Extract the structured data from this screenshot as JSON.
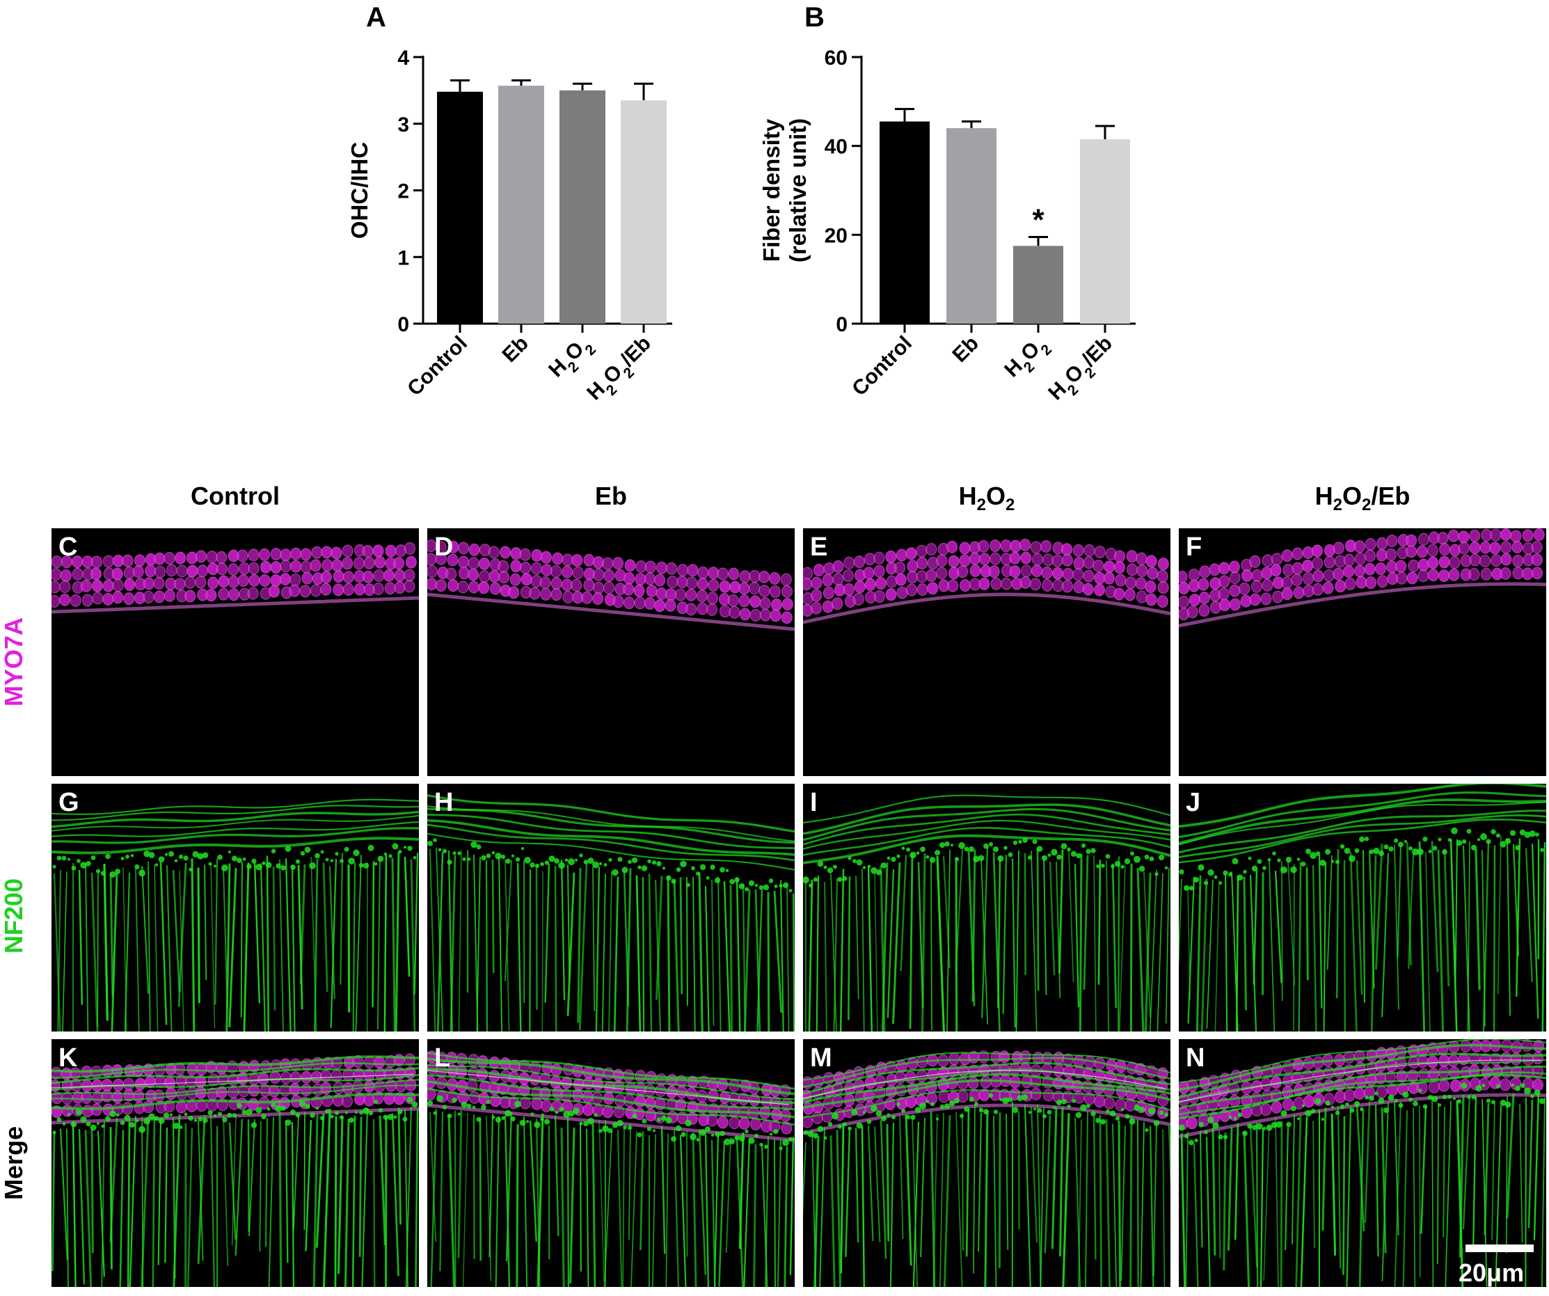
{
  "figure": {
    "column_headers": [
      {
        "main": "Control",
        "sub1": "",
        "mid": "",
        "sub2": "",
        "tail": ""
      },
      {
        "main": "Eb",
        "sub1": "",
        "mid": "",
        "sub2": "",
        "tail": ""
      },
      {
        "main": "H",
        "sub1": "2",
        "mid": "O",
        "sub2": "2",
        "tail": ""
      },
      {
        "main": "H",
        "sub1": "2",
        "mid": "O",
        "sub2": "2",
        "tail": "/Eb"
      }
    ],
    "row_labels": [
      "MYO7A",
      "NF200",
      "Merge"
    ],
    "panel_letters": [
      "C",
      "D",
      "E",
      "F",
      "G",
      "H",
      "I",
      "J",
      "K",
      "L",
      "M",
      "N"
    ],
    "scale_bar_label": "20μm",
    "colors": {
      "myo7a": "#d020d0",
      "nf200": "#20e020",
      "merge_overlap": "#f0f0f0"
    }
  },
  "chart_data": [
    {
      "type": "bar",
      "panel_label": "A",
      "ylabel": "OHC/IHC",
      "categories": [
        "Control",
        "Eb",
        "H2O2",
        "H2O2/Eb"
      ],
      "category_labels": [
        {
          "main": "Control",
          "sub1": "",
          "mid": "",
          "sub2": "",
          "tail": ""
        },
        {
          "main": "Eb",
          "sub1": "",
          "mid": "",
          "sub2": "",
          "tail": ""
        },
        {
          "main": "H",
          "sub1": "2",
          "mid": "O",
          "sub2": "2",
          "tail": ""
        },
        {
          "main": "H",
          "sub1": "2",
          "mid": "O",
          "sub2": "2",
          "tail": "/Eb"
        }
      ],
      "values": [
        3.48,
        3.57,
        3.5,
        3.35
      ],
      "errors": [
        0.17,
        0.08,
        0.1,
        0.25
      ],
      "significance": [
        "",
        "",
        "",
        ""
      ],
      "colors": [
        "#000000",
        "#a2a2a6",
        "#7c7c7c",
        "#d4d4d4"
      ],
      "ylim": [
        0,
        4
      ],
      "yticks": [
        0,
        1,
        2,
        3,
        4
      ]
    },
    {
      "type": "bar",
      "panel_label": "B",
      "ylabel": [
        "Fiber density",
        "(relative unit)"
      ],
      "categories": [
        "Control",
        "Eb",
        "H2O2",
        "H2O2/Eb"
      ],
      "category_labels": [
        {
          "main": "Control",
          "sub1": "",
          "mid": "",
          "sub2": "",
          "tail": ""
        },
        {
          "main": "Eb",
          "sub1": "",
          "mid": "",
          "sub2": "",
          "tail": ""
        },
        {
          "main": "H",
          "sub1": "2",
          "mid": "O",
          "sub2": "2",
          "tail": ""
        },
        {
          "main": "H",
          "sub1": "2",
          "mid": "O",
          "sub2": "2",
          "tail": "/Eb"
        }
      ],
      "values": [
        45.5,
        44,
        17.5,
        41.5
      ],
      "errors": [
        2.8,
        1.5,
        2,
        3
      ],
      "significance": [
        "",
        "",
        "*",
        ""
      ],
      "colors": [
        "#000000",
        "#a2a2a6",
        "#7c7c7c",
        "#d4d4d4"
      ],
      "ylim": [
        0,
        60
      ],
      "yticks": [
        0,
        20,
        40,
        60
      ]
    }
  ]
}
